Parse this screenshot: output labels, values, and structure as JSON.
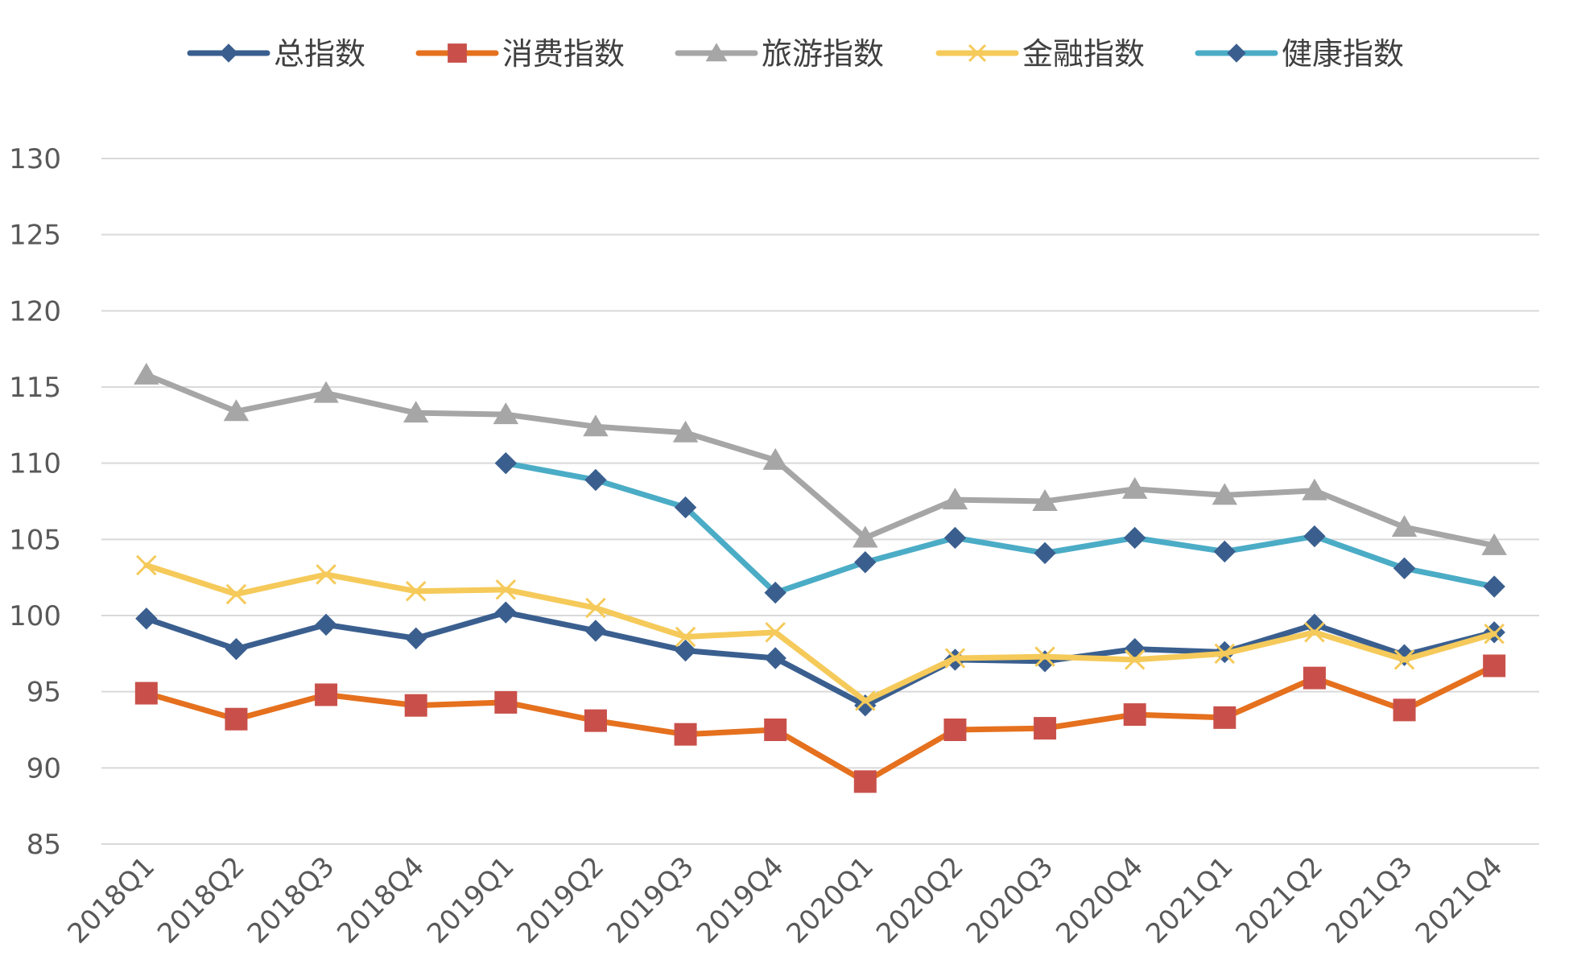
{
  "chart_data": {
    "type": "line",
    "title": "",
    "xlabel": "",
    "ylabel": "",
    "ylim": [
      85,
      130
    ],
    "yticks": [
      85,
      90,
      95,
      100,
      105,
      110,
      115,
      120,
      125,
      130
    ],
    "grid": true,
    "legend_position": "top",
    "categories": [
      "2018Q1",
      "2018Q2",
      "2018Q3",
      "2018Q4",
      "2019Q1",
      "2019Q2",
      "2019Q3",
      "2019Q4",
      "2020Q1",
      "2020Q2",
      "2020Q3",
      "2020Q4",
      "2021Q1",
      "2021Q2",
      "2021Q3",
      "2021Q4"
    ],
    "series": [
      {
        "name": "总指数",
        "color": "#3A5F8F",
        "marker": "diamond",
        "values": [
          99.8,
          97.8,
          99.4,
          98.5,
          100.2,
          99.0,
          97.7,
          97.2,
          94.1,
          97.1,
          97.0,
          97.8,
          97.6,
          99.4,
          97.4,
          98.9
        ]
      },
      {
        "name": "消费指数",
        "color": "#E5701E",
        "marker_color": "#C9504A",
        "marker": "square",
        "values": [
          94.9,
          93.2,
          94.8,
          94.1,
          94.3,
          93.1,
          92.2,
          92.5,
          89.1,
          92.5,
          92.6,
          93.5,
          93.3,
          95.9,
          93.8,
          96.7
        ]
      },
      {
        "name": "旅游指数",
        "color": "#A6A6A6",
        "marker": "triangle",
        "values": [
          115.8,
          113.4,
          114.6,
          113.3,
          113.2,
          112.4,
          112.0,
          110.2,
          105.1,
          107.6,
          107.5,
          108.3,
          107.9,
          108.2,
          105.8,
          104.6
        ]
      },
      {
        "name": "金融指数",
        "color": "#F5CA5A",
        "marker": "x",
        "values": [
          103.3,
          101.4,
          102.7,
          101.6,
          101.7,
          100.5,
          98.6,
          98.9,
          94.4,
          97.2,
          97.3,
          97.1,
          97.5,
          98.9,
          97.1,
          98.8
        ]
      },
      {
        "name": "健康指数",
        "color": "#4BACC6",
        "marker_color": "#3A5F8F",
        "marker": "diamond",
        "values": [
          null,
          null,
          null,
          null,
          110.0,
          108.9,
          107.1,
          101.5,
          103.5,
          105.1,
          104.1,
          105.1,
          104.2,
          105.2,
          103.1,
          101.9
        ]
      }
    ]
  }
}
